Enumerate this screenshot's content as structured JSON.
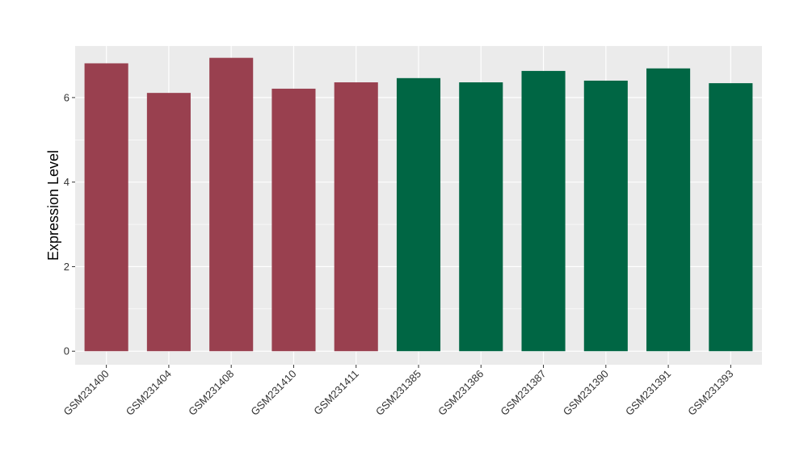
{
  "chart_data": {
    "type": "bar",
    "title": "",
    "xlabel": "",
    "ylabel": "Expression Level",
    "ylim": [
      -0.32,
      7.22
    ],
    "yticks": [
      0,
      2,
      4,
      6
    ],
    "grid": true,
    "legend": "none",
    "categories": [
      "GSM231400",
      "GSM231404",
      "GSM231408",
      "GSM231410",
      "GSM231411",
      "GSM231385",
      "GSM231386",
      "GSM231387",
      "GSM231390",
      "GSM231391",
      "GSM231393"
    ],
    "values": [
      6.81,
      6.11,
      6.94,
      6.21,
      6.36,
      6.46,
      6.36,
      6.63,
      6.4,
      6.69,
      6.34
    ],
    "colors": [
      "#99404f",
      "#99404f",
      "#99404f",
      "#99404f",
      "#99404f",
      "#006644",
      "#006644",
      "#006644",
      "#006644",
      "#006644",
      "#006644"
    ],
    "panel_background": "#ebebeb",
    "grid_color": "#ffffff",
    "tick_color": "#333333"
  }
}
